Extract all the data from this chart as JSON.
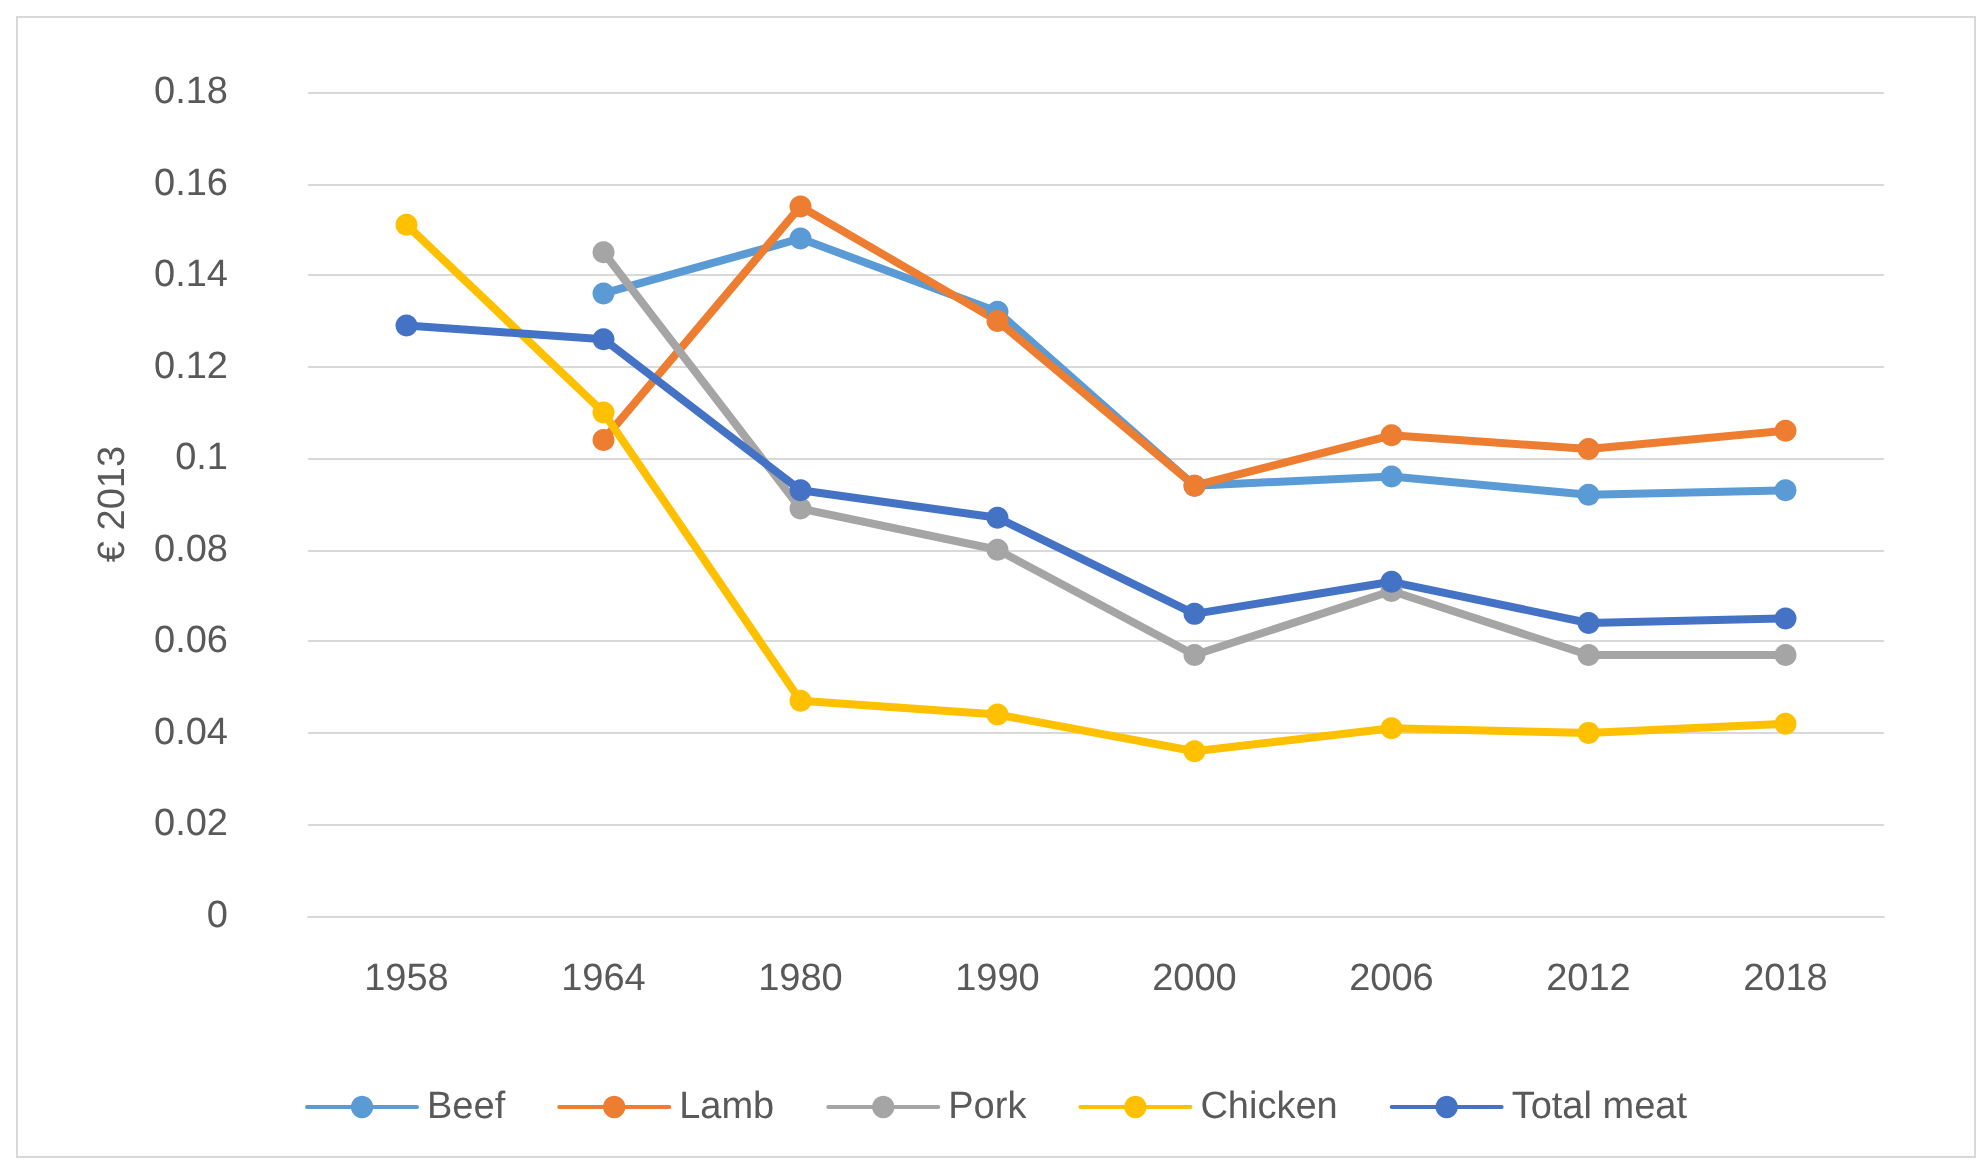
{
  "chart_data": {
    "type": "line",
    "ylabel": "€ 2013",
    "categories": [
      "1958",
      "1964",
      "1980",
      "1990",
      "2000",
      "2006",
      "2012",
      "2018"
    ],
    "series": [
      {
        "name": "Beef",
        "color": "#5b9bd5",
        "values": [
          null,
          0.136,
          0.148,
          0.132,
          0.094,
          0.096,
          0.092,
          0.093
        ]
      },
      {
        "name": "Lamb",
        "color": "#ed7d31",
        "values": [
          null,
          0.104,
          0.155,
          0.13,
          0.094,
          0.105,
          0.102,
          0.106
        ]
      },
      {
        "name": "Pork",
        "color": "#a5a5a5",
        "values": [
          null,
          0.145,
          0.089,
          0.08,
          0.057,
          0.071,
          0.057,
          0.057
        ]
      },
      {
        "name": "Chicken",
        "color": "#ffc000",
        "values": [
          0.151,
          0.11,
          0.047,
          0.044,
          0.036,
          0.041,
          0.04,
          0.042
        ]
      },
      {
        "name": "Total meat",
        "color": "#4472c4",
        "values": [
          0.129,
          0.126,
          0.093,
          0.087,
          0.066,
          0.073,
          0.064,
          0.065
        ]
      }
    ],
    "ylim": [
      0,
      0.18
    ],
    "yticks": [
      0,
      0.02,
      0.04,
      0.06,
      0.08,
      0.1,
      0.12,
      0.14,
      0.16,
      0.18
    ],
    "grid": "y",
    "legend": "bottom",
    "marker": "circle",
    "line_style": "solid"
  }
}
